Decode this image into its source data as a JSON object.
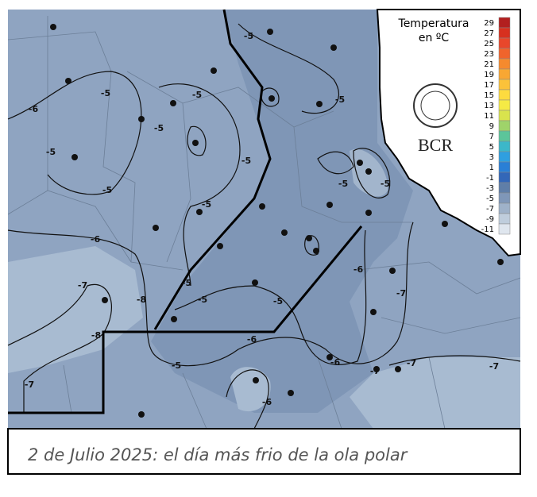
{
  "legend": {
    "title": [
      "Temperatura",
      "en ºC"
    ],
    "scale": [
      {
        "value": 29,
        "color": "#b21f1f"
      },
      {
        "value": 27,
        "color": "#d7301f"
      },
      {
        "value": 25,
        "color": "#e8472b"
      },
      {
        "value": 23,
        "color": "#f0642c"
      },
      {
        "value": 21,
        "color": "#f58a2e"
      },
      {
        "value": 19,
        "color": "#f8a733"
      },
      {
        "value": 17,
        "color": "#fbc23a"
      },
      {
        "value": 15,
        "color": "#fddb3f"
      },
      {
        "value": 13,
        "color": "#f5ea45"
      },
      {
        "value": 11,
        "color": "#d9e34d"
      },
      {
        "value": 9,
        "color": "#9fd36a"
      },
      {
        "value": 7,
        "color": "#5cc59a"
      },
      {
        "value": 5,
        "color": "#3cb7c9"
      },
      {
        "value": 3,
        "color": "#2f9fe0"
      },
      {
        "value": 1,
        "color": "#2a7fd6"
      },
      {
        "value": -1,
        "color": "#3367b8"
      },
      {
        "value": -3,
        "color": "#5f7ea8"
      },
      {
        "value": -5,
        "color": "#7f97b8"
      },
      {
        "value": -7,
        "color": "#9fb2c9"
      },
      {
        "value": -9,
        "color": "#bfcddc"
      },
      {
        "value": -11,
        "color": "#dfe6ee"
      }
    ]
  },
  "logo": {
    "text": "BCR"
  },
  "contour_labels": [
    "-5",
    "-5",
    "-5",
    "-6",
    "-5",
    "-5",
    "-5",
    "-5",
    "-5",
    "-5",
    "-6",
    "-5",
    "-5",
    "-7",
    "-8",
    "-5",
    "-5",
    "-5",
    "-6",
    "-7",
    "-8",
    "-6",
    "-5",
    "-6",
    "-7",
    "-7",
    "-7",
    "-7",
    "-6"
  ],
  "caption": "2 de Julio 2025: el día más frio de la ola polar"
}
